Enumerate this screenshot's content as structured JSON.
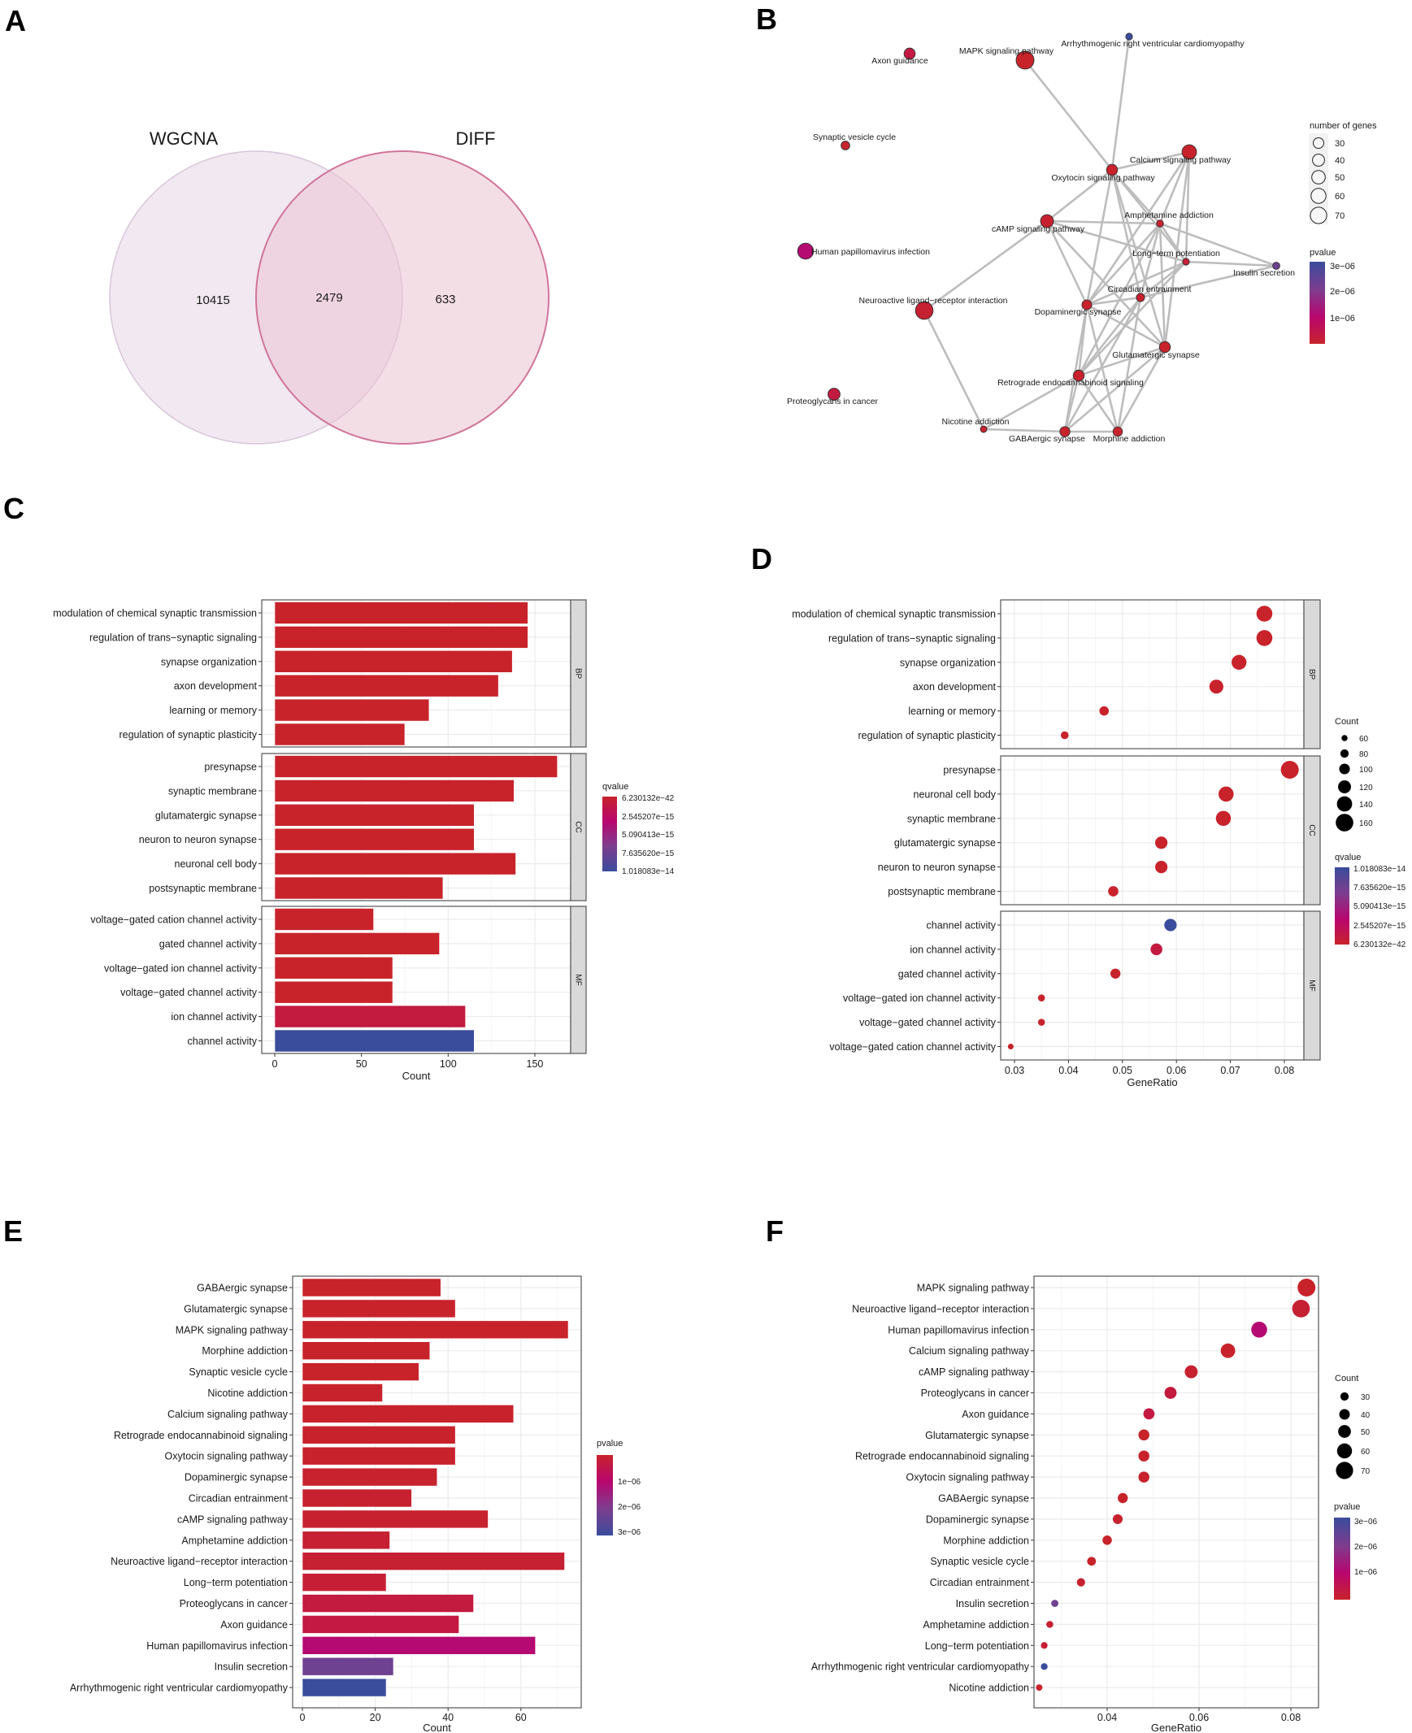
{
  "panel_labels": [
    "A",
    "B",
    "C",
    "D",
    "E",
    "F"
  ],
  "color_scale": {
    "low": "#C8232B",
    "mid1": "#B8066F",
    "mid2": "#7E3D8E",
    "high": "#3A4C9C"
  },
  "chart_data": [
    {
      "type": "venn",
      "sets": [
        {
          "name": "WGCNA",
          "only": "10415"
        },
        {
          "name": "DIFF",
          "only": "633"
        }
      ],
      "intersection": "2479",
      "colors": {
        "left_fill": "#EFE6EF",
        "left_stroke": "#D8C6D9",
        "right_fill": "#EBC3D2",
        "right_stroke": "#D0759A"
      }
    },
    {
      "type": "network",
      "size_legend_title": "number of genes",
      "size_ticks": [
        "30",
        "40",
        "50",
        "60",
        "70"
      ],
      "color_legend_title": "pvalue",
      "color_ticks": [
        "3e−06",
        "2e−06",
        "1e−06"
      ],
      "color_range": [
        0,
        3.1e-06
      ],
      "nodes": [
        {
          "name": "Axon guidance",
          "count": 43,
          "pvalue": 3.5e-07
        },
        {
          "name": "MAPK signaling pathway",
          "count": 73,
          "pvalue": 1e-09
        },
        {
          "name": "Arrhythmogenic right ventricular cardiomyopathy",
          "count": 23,
          "pvalue": 3.1e-06
        },
        {
          "name": "Synaptic vesicle cycle",
          "count": 32,
          "pvalue": 5e-09
        },
        {
          "name": "Human papillomavirus infection",
          "count": 64,
          "pvalue": 1.1e-06
        },
        {
          "name": "Calcium signaling pathway",
          "count": 58,
          "pvalue": 1e-08
        },
        {
          "name": "Oxytocin signaling pathway",
          "count": 42,
          "pvalue": 3e-08
        },
        {
          "name": "cAMP signaling pathway",
          "count": 51,
          "pvalue": 8e-08
        },
        {
          "name": "Amphetamine addiction",
          "count": 24,
          "pvalue": 1e-07
        },
        {
          "name": "Long−term potentiation",
          "count": 23,
          "pvalue": 1.5e-07
        },
        {
          "name": "Insulin secretion",
          "count": 25,
          "pvalue": 2.3e-06
        },
        {
          "name": "Circadian entrainment",
          "count": 30,
          "pvalue": 6e-08
        },
        {
          "name": "Dopaminergic synapse",
          "count": 37,
          "pvalue": 4e-08
        },
        {
          "name": "Neuroactive ligand−receptor interaction",
          "count": 72,
          "pvalue": 1.2e-07
        },
        {
          "name": "Glutamatergic synapse",
          "count": 42,
          "pvalue": 5e-10
        },
        {
          "name": "Retrograde endocannabinoid signaling",
          "count": 42,
          "pvalue": 2e-08
        },
        {
          "name": "Proteoglycans in cancer",
          "count": 47,
          "pvalue": 3e-07
        },
        {
          "name": "Nicotine addiction",
          "count": 22,
          "pvalue": 8e-09
        },
        {
          "name": "GABAergic synapse",
          "count": 38,
          "pvalue": 2e-10
        },
        {
          "name": "Morphine addiction",
          "count": 35,
          "pvalue": 3e-09
        }
      ],
      "edges": [
        [
          1,
          6
        ],
        [
          2,
          6
        ],
        [
          6,
          5
        ],
        [
          6,
          7
        ],
        [
          6,
          8
        ],
        [
          6,
          12
        ],
        [
          6,
          14
        ],
        [
          6,
          11
        ],
        [
          6,
          9
        ],
        [
          5,
          8
        ],
        [
          5,
          12
        ],
        [
          5,
          9
        ],
        [
          5,
          14
        ],
        [
          7,
          8
        ],
        [
          7,
          9
        ],
        [
          7,
          12
        ],
        [
          7,
          14
        ],
        [
          7,
          13
        ],
        [
          8,
          10
        ],
        [
          8,
          12
        ],
        [
          8,
          11
        ],
        [
          8,
          14
        ],
        [
          8,
          15
        ],
        [
          8,
          9
        ],
        [
          9,
          10
        ],
        [
          9,
          12
        ],
        [
          9,
          11
        ],
        [
          9,
          15
        ],
        [
          11,
          10
        ],
        [
          11,
          12
        ],
        [
          11,
          15
        ],
        [
          11,
          18
        ],
        [
          11,
          19
        ],
        [
          12,
          15
        ],
        [
          12,
          18
        ],
        [
          12,
          19
        ],
        [
          12,
          14
        ],
        [
          14,
          15
        ],
        [
          14,
          18
        ],
        [
          14,
          19
        ],
        [
          15,
          18
        ],
        [
          15,
          19
        ],
        [
          15,
          17
        ],
        [
          18,
          19
        ],
        [
          18,
          17
        ],
        [
          13,
          17
        ]
      ]
    },
    {
      "type": "bar",
      "xlabel": "Count",
      "xticks": [
        "0",
        "50",
        "100",
        "150"
      ],
      "xtick_values": [
        0,
        50,
        100,
        150
      ],
      "color_legend_title": "qvalue",
      "color_ticks": [
        "6.230132e−42",
        "2.545207e−15",
        "5.090413e−15",
        "7.635620e−15",
        "1.018083e−14"
      ],
      "color_range": [
        0,
        1.018083e-14
      ],
      "facets": [
        {
          "name": "BP",
          "categories": [
            "modulation of chemical synaptic transmission",
            "regulation of trans−synaptic signaling",
            "synapse organization",
            "axon development",
            "learning or memory",
            "regulation of synaptic plasticity"
          ],
          "values": [
            146,
            146,
            137,
            129,
            89,
            75
          ],
          "qvalue": [
            6.2e-42,
            6.2e-42,
            1e-30,
            1e-25,
            1e-20,
            1e-18
          ]
        },
        {
          "name": "CC",
          "categories": [
            "presynapse",
            "synaptic membrane",
            "glutamatergic synapse",
            "neuron to neuron synapse",
            "neuronal cell body",
            "postsynaptic membrane"
          ],
          "values": [
            163,
            138,
            115,
            115,
            139,
            97
          ],
          "qvalue": [
            1e-40,
            1e-30,
            1e-25,
            1e-25,
            1e-28,
            1e-20
          ]
        },
        {
          "name": "MF",
          "categories": [
            "voltage−gated cation channel activity",
            "gated channel activity",
            "voltage−gated ion channel activity",
            "voltage−gated channel activity",
            "ion channel activity",
            "channel activity"
          ],
          "values": [
            57,
            95,
            68,
            68,
            110,
            115
          ],
          "qvalue": [
            1e-18,
            1e-17,
            1e-17,
            1e-17,
            1e-15,
            1.018083e-14
          ]
        }
      ]
    },
    {
      "type": "scatter",
      "xlabel": "GeneRatio",
      "xticks": [
        "0.03",
        "0.04",
        "0.05",
        "0.06",
        "0.07",
        "0.08"
      ],
      "xtick_values": [
        0.03,
        0.04,
        0.05,
        0.06,
        0.07,
        0.08
      ],
      "size_legend_title": "Count",
      "size_ticks": [
        "60",
        "80",
        "100",
        "120",
        "140",
        "160"
      ],
      "color_legend_title": "qvalue",
      "color_ticks": [
        "1.018083e−14",
        "7.635620e−15",
        "5.090413e−15",
        "2.545207e−15",
        "6.230132e−42"
      ],
      "color_range": [
        0,
        1.018083e-14
      ],
      "facets": [
        {
          "name": "BP",
          "categories": [
            "modulation of chemical synaptic transmission",
            "regulation of trans−synaptic signaling",
            "synapse organization",
            "axon development",
            "learning or memory",
            "regulation of synaptic plasticity"
          ],
          "gene_ratio": [
            0.0763,
            0.0763,
            0.0716,
            0.0674,
            0.0466,
            0.0393
          ],
          "count": [
            146,
            146,
            137,
            129,
            89,
            75
          ],
          "qvalue": [
            6.2e-42,
            6.2e-42,
            1e-30,
            1e-25,
            1e-20,
            1e-18
          ]
        },
        {
          "name": "CC",
          "categories": [
            "presynapse",
            "neuronal cell body",
            "synaptic membrane",
            "glutamatergic synapse",
            "neuron to neuron synapse",
            "postsynaptic membrane"
          ],
          "gene_ratio": [
            0.081,
            0.0692,
            0.0687,
            0.0572,
            0.0572,
            0.0483
          ],
          "count": [
            163,
            139,
            138,
            115,
            115,
            97
          ],
          "qvalue": [
            1e-40,
            1e-28,
            1e-30,
            1e-25,
            1e-25,
            1e-20
          ]
        },
        {
          "name": "MF",
          "categories": [
            "channel activity",
            "ion channel activity",
            "gated channel activity",
            "voltage−gated ion channel activity",
            "voltage−gated channel activity",
            "voltage−gated cation channel activity"
          ],
          "gene_ratio": [
            0.0589,
            0.0563,
            0.0487,
            0.035,
            0.035,
            0.0293
          ],
          "count": [
            115,
            110,
            95,
            68,
            68,
            57
          ],
          "qvalue": [
            1.018083e-14,
            1e-15,
            1e-17,
            1e-17,
            1e-17,
            1e-18
          ]
        }
      ]
    },
    {
      "type": "bar",
      "xlabel": "Count",
      "xticks": [
        "0",
        "20",
        "40",
        "60"
      ],
      "xtick_values": [
        0,
        20,
        40,
        60
      ],
      "color_legend_title": "pvalue",
      "color_ticks": [
        "1e−06",
        "2e−06",
        "3e−06"
      ],
      "color_range": [
        0,
        3.1e-06
      ],
      "categories": [
        "GABAergic synapse",
        "Glutamatergic synapse",
        "MAPK signaling pathway",
        "Morphine addiction",
        "Synaptic vesicle cycle",
        "Nicotine addiction",
        "Calcium signaling pathway",
        "Retrograde endocannabinoid signaling",
        "Oxytocin signaling pathway",
        "Dopaminergic synapse",
        "Circadian entrainment",
        "cAMP signaling pathway",
        "Amphetamine addiction",
        "Neuroactive ligand−receptor interaction",
        "Long−term potentiation",
        "Proteoglycans in cancer",
        "Axon guidance",
        "Human papillomavirus infection",
        "Insulin secretion",
        "Arrhythmogenic right ventricular cardiomyopathy"
      ],
      "values": [
        38,
        42,
        73,
        35,
        32,
        22,
        58,
        42,
        42,
        37,
        30,
        51,
        24,
        72,
        23,
        47,
        43,
        64,
        25,
        23
      ],
      "pvalue": [
        2e-10,
        5e-10,
        1e-09,
        3e-09,
        5e-09,
        8e-09,
        1e-08,
        2e-08,
        3e-08,
        4e-08,
        6e-08,
        8e-08,
        1e-07,
        1.2e-07,
        1.5e-07,
        3e-07,
        3.5e-07,
        1.1e-06,
        2.3e-06,
        3.1e-06
      ]
    },
    {
      "type": "scatter",
      "xlabel": "GeneRatio",
      "xticks": [
        "0.04",
        "0.06",
        "0.08"
      ],
      "xtick_values": [
        0.04,
        0.06,
        0.08
      ],
      "size_legend_title": "Count",
      "size_ticks": [
        "30",
        "40",
        "50",
        "60",
        "70"
      ],
      "color_legend_title": "pvalue",
      "color_ticks": [
        "3e−06",
        "2e−06",
        "1e−06"
      ],
      "color_range": [
        0,
        3.1e-06
      ],
      "categories": [
        "MAPK signaling pathway",
        "Neuroactive ligand−receptor interaction",
        "Human papillomavirus infection",
        "Calcium signaling pathway",
        "cAMP signaling pathway",
        "Proteoglycans in cancer",
        "Axon guidance",
        "Glutamatergic synapse",
        "Retrograde endocannabinoid signaling",
        "Oxytocin signaling pathway",
        "GABAergic synapse",
        "Dopaminergic synapse",
        "Morphine addiction",
        "Synaptic vesicle cycle",
        "Circadian entrainment",
        "Insulin secretion",
        "Amphetamine addiction",
        "Long−term potentiation",
        "Arrhythmogenic right ventricular cardiomyopathy",
        "Nicotine addiction"
      ],
      "gene_ratio": [
        0.0834,
        0.0822,
        0.0731,
        0.0663,
        0.0583,
        0.0538,
        0.0491,
        0.048,
        0.048,
        0.048,
        0.0434,
        0.0423,
        0.04,
        0.0366,
        0.0343,
        0.0286,
        0.0275,
        0.0263,
        0.0263,
        0.0252
      ],
      "count": [
        73,
        72,
        64,
        58,
        51,
        47,
        43,
        42,
        42,
        42,
        38,
        37,
        35,
        32,
        30,
        25,
        24,
        23,
        23,
        22
      ],
      "pvalue": [
        1e-09,
        1.2e-07,
        1.1e-06,
        1e-08,
        8e-08,
        3e-07,
        3.5e-07,
        5e-10,
        2e-08,
        3e-08,
        2e-10,
        4e-08,
        3e-09,
        5e-09,
        6e-08,
        2.3e-06,
        1e-07,
        1.5e-07,
        3.1e-06,
        8e-09
      ]
    }
  ]
}
